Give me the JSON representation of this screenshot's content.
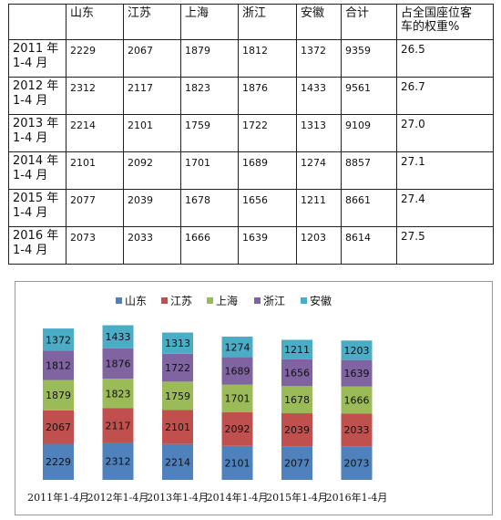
{
  "table": {
    "headers": [
      "",
      "山东",
      "江苏",
      "上海",
      "浙江",
      "安徽",
      "合计",
      "占全国座位客\n车的权重%"
    ],
    "rows": [
      {
        "year": "2011 年\n1-4 月",
        "values": [
          "2229",
          "2067",
          "1879",
          "1812",
          "1372",
          "9359"
        ],
        "share": "26.5"
      },
      {
        "year": "2012 年\n1-4 月",
        "values": [
          "2312",
          "2117",
          "1823",
          "1876",
          "1433",
          "9561"
        ],
        "share": "26.7"
      },
      {
        "year": "2013 年\n1-4 月",
        "values": [
          "2214",
          "2101",
          "1759",
          "1722",
          "1313",
          "9109"
        ],
        "share": "27.0"
      },
      {
        "year": "2014 年\n1-4 月",
        "values": [
          "2101",
          "2092",
          "1701",
          "1689",
          "1274",
          "8857"
        ],
        "share": "27.1"
      },
      {
        "year": "2015 年\n1-4 月",
        "values": [
          "2077",
          "2039",
          "1678",
          "1656",
          "1211",
          "8661"
        ],
        "share": "27.4"
      },
      {
        "year": "2016 年\n1-4 月",
        "values": [
          "2073",
          "2033",
          "1666",
          "1639",
          "1203",
          "8614"
        ],
        "share": "27.5"
      }
    ]
  },
  "chart_data": {
    "type": "bar",
    "stacked": true,
    "legend_position": "top",
    "grid": false,
    "categories": [
      "2011年1-4月",
      "2012年1-4月",
      "2013年1-4月",
      "2014年1-4月",
      "2015年1-4月",
      "2016年1-4月"
    ],
    "series": [
      {
        "name": "山东",
        "color": "#4F81BD",
        "values": [
          2229,
          2312,
          2214,
          2101,
          2077,
          2073
        ]
      },
      {
        "name": "江苏",
        "color": "#C0504D",
        "values": [
          2067,
          2117,
          2101,
          2092,
          2039,
          2033
        ]
      },
      {
        "name": "上海",
        "color": "#9BBB59",
        "values": [
          1879,
          1823,
          1759,
          1701,
          1678,
          1666
        ]
      },
      {
        "name": "浙江",
        "color": "#8064A2",
        "values": [
          1812,
          1876,
          1722,
          1689,
          1656,
          1639
        ]
      },
      {
        "name": "安徽",
        "color": "#4BACC6",
        "values": [
          1372,
          1433,
          1313,
          1274,
          1211,
          1203
        ]
      }
    ],
    "ylim": [
      0,
      11000
    ]
  }
}
